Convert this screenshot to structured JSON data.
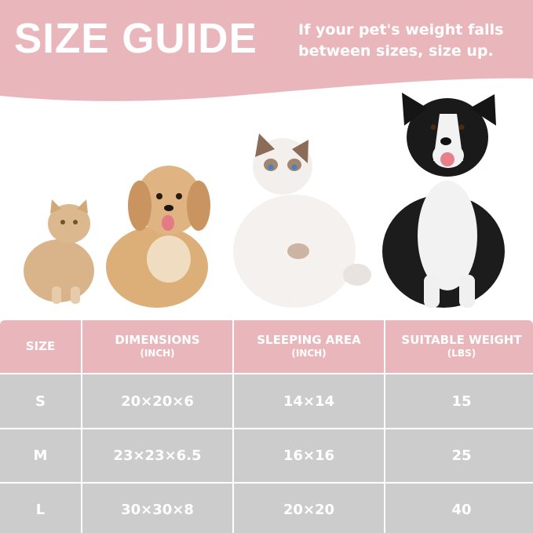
{
  "header": {
    "title": "SIZE GUIDE",
    "note_line1": "If your pet's weight falls",
    "note_line2": "between sizes, size up."
  },
  "colors": {
    "accent_pink": "#e9b7bb",
    "row_gray": "#cccccc",
    "text": "#ffffff"
  },
  "pets": [
    "cat",
    "dog",
    "cat",
    "dog"
  ],
  "table": {
    "headers": [
      {
        "label": "SIZE",
        "unit": ""
      },
      {
        "label": "DIMENSIONS",
        "unit": "(INCH)"
      },
      {
        "label": "SLEEPING AREA",
        "unit": "(INCH)"
      },
      {
        "label": "SUITABLE WEIGHT",
        "unit": "(LBS)"
      }
    ],
    "rows": [
      [
        "S",
        "20×20×6",
        "14×14",
        "15"
      ],
      [
        "M",
        "23×23×6.5",
        "16×16",
        "25"
      ],
      [
        "L",
        "30×30×8",
        "20×20",
        "40"
      ]
    ]
  }
}
